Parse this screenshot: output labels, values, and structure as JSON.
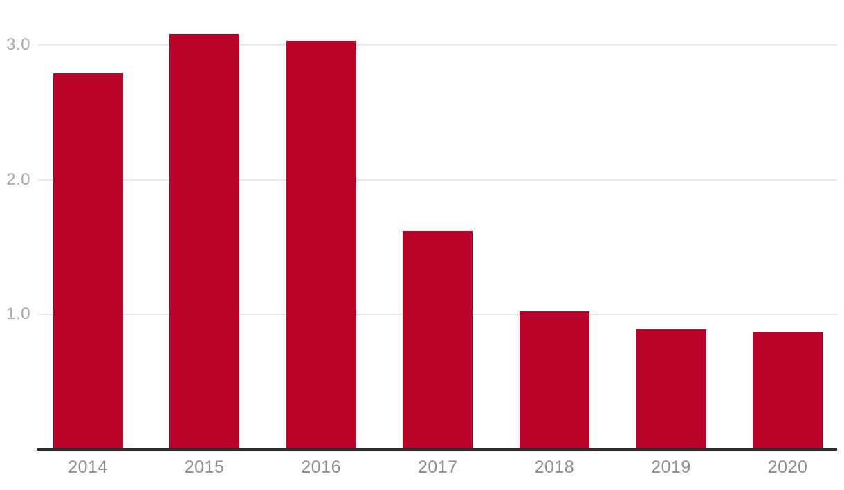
{
  "chart_data": {
    "type": "bar",
    "categories": [
      "2014",
      "2015",
      "2016",
      "2017",
      "2018",
      "2019",
      "2020"
    ],
    "values": [
      2.79,
      3.08,
      3.03,
      1.62,
      1.02,
      0.89,
      0.87
    ],
    "yticks": [
      {
        "value": 1.0,
        "label": "1.0"
      },
      {
        "value": 2.0,
        "label": "2.0"
      },
      {
        "value": 3.0,
        "label": "3.0"
      }
    ],
    "ylim": [
      0,
      3.33
    ],
    "grid": "horizontal",
    "legend": "none",
    "colors": {
      "bar": "#b90227",
      "gridline": "#e7e7e7",
      "axis_line": "#2d2d2d",
      "y_tick_label": "#a7a7a7",
      "x_tick_label": "#8e8e8e",
      "background": "#ffffff"
    }
  }
}
